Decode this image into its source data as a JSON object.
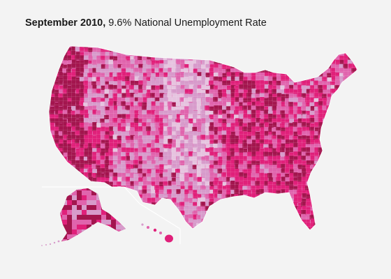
{
  "header": {
    "title_bold": "September 2010,",
    "title_rest": " 9.6% National Unemployment Rate"
  },
  "map": {
    "palette": {
      "very_low": "#e6c3df",
      "low": "#d79bcb",
      "mid": "#e064ad",
      "high": "#e0207a",
      "very_high": "#a3154e"
    },
    "background": "#f3f3f3",
    "border_color": "#ffffff",
    "regions": [
      "contiguous-us",
      "alaska",
      "hawaii"
    ]
  }
}
